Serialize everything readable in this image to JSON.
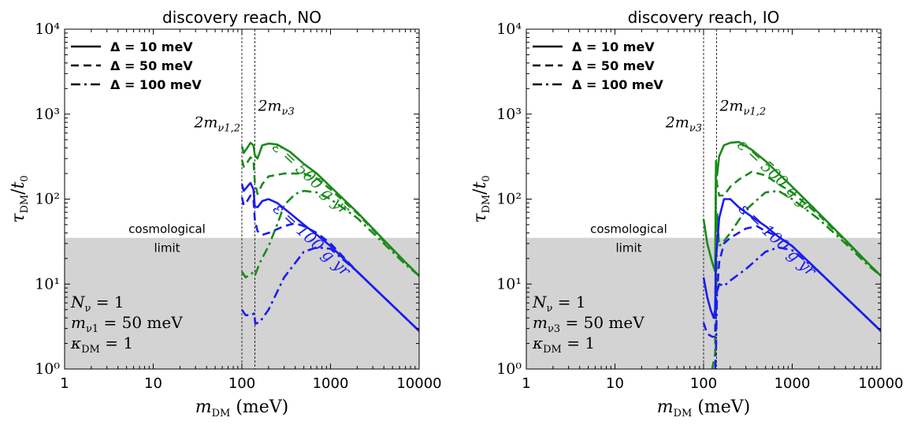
{
  "chart_data": [
    {
      "type": "line",
      "title": "discovery reach, NO",
      "xlabel": "m_DM (meV)",
      "ylabel": "τ_DM/t₀",
      "xscale": "log",
      "yscale": "log",
      "xlim": [
        1,
        10000
      ],
      "ylim": [
        1,
        10000
      ],
      "xticks": [
        "1",
        "10",
        "100",
        "1000",
        "10000"
      ],
      "yticks": [
        "10⁰",
        "10¹",
        "10²",
        "10³",
        "10⁴"
      ],
      "legend": {
        "placement": "top-left",
        "entries": [
          {
            "label": "Δ = 10 meV",
            "dash": "solid"
          },
          {
            "label": "Δ = 50 meV",
            "dash": "dashed"
          },
          {
            "label": "Δ = 100 meV",
            "dash": "dashdot"
          }
        ]
      },
      "shaded_region": {
        "y_max": 35,
        "color": "#d3d3d3",
        "label_line1": "cosmological",
        "label_line2": "limit"
      },
      "thresholds": [
        {
          "x": 100,
          "label_main": "2m",
          "label_sub": "ν1,2",
          "label_y": 700
        },
        {
          "x": 140,
          "label_main": "2m",
          "label_sub": "ν3",
          "label_y": 1100
        }
      ],
      "annotations": {
        "params": [
          {
            "main": "N",
            "sub": "ν",
            "rest": " = 1"
          },
          {
            "main": "m",
            "sub": "ν1",
            "rest": " = 50 meV"
          },
          {
            "main": "κ",
            "sub": "DM",
            "rest": " = 1"
          }
        ],
        "eps_green": {
          "text": "ε = 500 g yr",
          "color": "#1a8a1a",
          "x": 550,
          "y": 160,
          "angle": 43
        },
        "eps_blue": {
          "text": "ε = 100 g yr",
          "color": "#1c1cf0",
          "x": 560,
          "y": 30,
          "angle": 43
        }
      },
      "series": [
        {
          "group": "500 g yr",
          "color": "#1a8a1a",
          "dash": "solid",
          "x": [
            100,
            105,
            115,
            125,
            135,
            140,
            150,
            170,
            200,
            250,
            350,
            500,
            700,
            1000,
            2000,
            4000,
            7000,
            10000
          ],
          "y": [
            420,
            350,
            400,
            460,
            430,
            330,
            300,
            430,
            450,
            440,
            360,
            260,
            200,
            140,
            70,
            33,
            18,
            12.5
          ]
        },
        {
          "group": "500 g yr",
          "color": "#1a8a1a",
          "dash": "dashed",
          "x": [
            100,
            105,
            115,
            125,
            135,
            140,
            150,
            170,
            200,
            300,
            500,
            700,
            1000,
            2000,
            4000,
            7000,
            10000
          ],
          "y": [
            290,
            240,
            270,
            310,
            290,
            160,
            115,
            150,
            185,
            200,
            200,
            175,
            130,
            68,
            32,
            18,
            12.5
          ]
        },
        {
          "group": "500 g yr",
          "color": "#1a8a1a",
          "dash": "dashdot",
          "x": [
            100,
            110,
            125,
            138,
            142,
            160,
            200,
            250,
            300,
            400,
            500,
            700,
            1000,
            2000,
            4000,
            7000,
            10000
          ],
          "y": [
            14,
            12,
            13,
            14,
            13,
            18,
            28,
            50,
            85,
            115,
            125,
            120,
            100,
            60,
            30,
            17,
            12.5
          ]
        },
        {
          "group": "100 g yr",
          "color": "#1c1cf0",
          "dash": "solid",
          "x": [
            100,
            105,
            115,
            125,
            135,
            140,
            150,
            170,
            200,
            250,
            350,
            500,
            700,
            1000,
            2000,
            4000,
            7000,
            10000
          ],
          "y": [
            150,
            125,
            140,
            155,
            130,
            82,
            80,
            95,
            100,
            90,
            68,
            50,
            38,
            28,
            14,
            7,
            4,
            2.8
          ]
        },
        {
          "group": "100 g yr",
          "color": "#1c1cf0",
          "dash": "dashed",
          "x": [
            100,
            105,
            115,
            125,
            135,
            140,
            150,
            170,
            200,
            300,
            400,
            500,
            700,
            1000,
            2000,
            4000,
            7000,
            10000
          ],
          "y": [
            105,
            85,
            95,
            110,
            100,
            58,
            42,
            38,
            40,
            48,
            52,
            48,
            40,
            30,
            14,
            7,
            4,
            2.8
          ]
        },
        {
          "group": "100 g yr",
          "color": "#1c1cf0",
          "dash": "dashdot",
          "x": [
            100,
            110,
            125,
            138,
            142,
            160,
            200,
            300,
            500,
            700,
            1000,
            2000,
            4000,
            7000,
            10000
          ],
          "y": [
            5,
            4.3,
            4.3,
            4.5,
            3.4,
            3.6,
            5,
            12,
            24,
            27,
            26,
            14,
            7,
            4,
            2.8
          ]
        }
      ]
    },
    {
      "type": "line",
      "title": "discovery reach, IO",
      "xlabel": "m_DM (meV)",
      "ylabel": "τ_DM/t₀",
      "xscale": "log",
      "yscale": "log",
      "xlim": [
        1,
        10000
      ],
      "ylim": [
        1,
        10000
      ],
      "xticks": [
        "1",
        "10",
        "100",
        "1000",
        "10000"
      ],
      "yticks": [
        "10⁰",
        "10¹",
        "10²",
        "10³",
        "10⁴"
      ],
      "legend": {
        "placement": "top-left",
        "entries": [
          {
            "label": "Δ = 10 meV",
            "dash": "solid"
          },
          {
            "label": "Δ = 50 meV",
            "dash": "dashed"
          },
          {
            "label": "Δ = 100 meV",
            "dash": "dashdot"
          }
        ]
      },
      "shaded_region": {
        "y_max": 35,
        "color": "#d3d3d3",
        "label_line1": "cosmological",
        "label_line2": "limit"
      },
      "thresholds": [
        {
          "x": 100,
          "label_main": "2m",
          "label_sub": "ν3",
          "label_y": 700
        },
        {
          "x": 140,
          "label_main": "2m",
          "label_sub": "ν1,2",
          "label_y": 1100
        }
      ],
      "annotations": {
        "params": [
          {
            "main": "N",
            "sub": "ν",
            "rest": " = 1"
          },
          {
            "main": "m",
            "sub": "ν3",
            "rest": " = 50 meV"
          },
          {
            "main": "κ",
            "sub": "DM",
            "rest": " = 1"
          }
        ],
        "eps_green": {
          "text": "ε = 500 g yr",
          "color": "#1a8a1a",
          "x": 600,
          "y": 170,
          "angle": 43
        },
        "eps_blue": {
          "text": "ε = 100 g yr",
          "color": "#1c1cf0",
          "x": 620,
          "y": 30,
          "angle": 43
        }
      },
      "series": [
        {
          "group": "500 g yr",
          "color": "#1a8a1a",
          "dash": "solid",
          "x": [
            100,
            110,
            125,
            135,
            138,
            142,
            150,
            170,
            200,
            250,
            350,
            500,
            700,
            1000,
            2000,
            4000,
            7000,
            10000
          ],
          "y": [
            58,
            30,
            18,
            14,
            280,
            190,
            320,
            430,
            460,
            470,
            380,
            280,
            200,
            140,
            68,
            33,
            18,
            12.5
          ]
        },
        {
          "group": "500 g yr",
          "color": "#1a8a1a",
          "dash": "dashed",
          "x": [
            125,
            135,
            138,
            142,
            150,
            170,
            200,
            250,
            350,
            500,
            700,
            1000,
            2000,
            4000,
            7000,
            10000
          ],
          "y": [
            1,
            1.5,
            200,
            150,
            110,
            110,
            140,
            170,
            210,
            190,
            150,
            120,
            65,
            32,
            18,
            12.5
          ]
        },
        {
          "group": "500 g yr",
          "color": "#1a8a1a",
          "dash": "dashdot",
          "x": [
            135,
            138,
            142,
            150,
            170,
            200,
            300,
            500,
            700,
            1000,
            2000,
            4000,
            7000,
            10000
          ],
          "y": [
            1,
            1.8,
            70,
            28,
            32,
            40,
            75,
            120,
            125,
            100,
            58,
            30,
            17,
            12.5
          ]
        },
        {
          "group": "100 g yr",
          "color": "#1c1cf0",
          "dash": "solid",
          "x": [
            100,
            110,
            120,
            130,
            135,
            138,
            142,
            150,
            170,
            200,
            250,
            350,
            500,
            700,
            1000,
            2000,
            4000,
            7000,
            10000
          ],
          "y": [
            12,
            7,
            5,
            4,
            5,
            20,
            28,
            60,
            100,
            100,
            80,
            62,
            48,
            36,
            28,
            14,
            7,
            4,
            2.8
          ]
        },
        {
          "group": "100 g yr",
          "color": "#1c1cf0",
          "dash": "dashed",
          "x": [
            100,
            110,
            125,
            135,
            138,
            142,
            150,
            170,
            200,
            300,
            400,
            500,
            700,
            1000,
            2000,
            4000,
            7000,
            10000
          ],
          "y": [
            3.5,
            2.6,
            2.4,
            2.4,
            6,
            8,
            18,
            30,
            35,
            45,
            48,
            42,
            36,
            28,
            14,
            7,
            4,
            2.8
          ]
        },
        {
          "group": "100 g yr",
          "color": "#1c1cf0",
          "dash": "dashdot",
          "x": [
            135,
            138,
            142,
            150,
            170,
            200,
            300,
            500,
            700,
            1000,
            2000,
            4000,
            7000,
            10000
          ],
          "y": [
            1,
            1.5,
            8,
            10,
            9.5,
            11,
            15,
            24,
            27,
            25,
            14,
            7,
            4,
            2.8
          ]
        }
      ]
    }
  ]
}
